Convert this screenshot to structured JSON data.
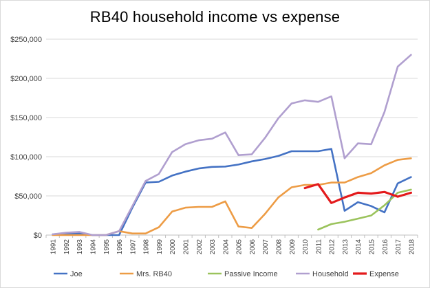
{
  "chart_data": {
    "type": "line",
    "title": "RB40 household income vs expense",
    "xlabel": "",
    "ylabel": "",
    "ylim": [
      0,
      250000
    ],
    "yticks": [
      "$0",
      "$50,000",
      "$100,000",
      "$150,000",
      "$200,000",
      "$250,000"
    ],
    "ytick_values": [
      0,
      50000,
      100000,
      150000,
      200000,
      250000
    ],
    "x": [
      1991,
      1992,
      1993,
      1994,
      1995,
      1996,
      1997,
      1998,
      1999,
      2000,
      2001,
      2002,
      2003,
      2004,
      2005,
      2006,
      2007,
      2008,
      2009,
      2010,
      2011,
      2012,
      2013,
      2014,
      2015,
      2016,
      2017,
      2018
    ],
    "grid": true,
    "legend_position": "bottom",
    "series": [
      {
        "name": "Joe",
        "color": "#4472c4",
        "values": [
          1000,
          2000,
          2000,
          0,
          0,
          0,
          35000,
          67000,
          68000,
          76000,
          81000,
          85000,
          87000,
          87500,
          90000,
          94000,
          97000,
          101000,
          107000,
          107000,
          107000,
          110000,
          31000,
          42000,
          37000,
          29000,
          66000,
          74000
        ]
      },
      {
        "name": "Mrs. RB40",
        "color": "#ed9c45",
        "values": [
          0,
          0,
          0,
          0,
          0,
          5000,
          2000,
          2000,
          10000,
          30000,
          35000,
          36000,
          36000,
          43000,
          11000,
          9000,
          27000,
          48000,
          61000,
          64000,
          64000,
          67000,
          67000,
          74000,
          79000,
          89000,
          96000,
          98000
        ]
      },
      {
        "name": "Passive Income",
        "color": "#9bc35c",
        "values": [
          null,
          null,
          null,
          null,
          null,
          null,
          null,
          null,
          null,
          null,
          null,
          null,
          null,
          null,
          null,
          null,
          null,
          null,
          null,
          null,
          7000,
          14000,
          17000,
          21000,
          25000,
          38000,
          54000,
          58000
        ]
      },
      {
        "name": "Household",
        "color": "#b09fcf",
        "values": [
          1000,
          3000,
          4000,
          0,
          0,
          5000,
          37000,
          69000,
          78000,
          106000,
          116000,
          121000,
          123000,
          131000,
          102000,
          103000,
          124000,
          149000,
          168000,
          172000,
          170000,
          177000,
          98000,
          117000,
          116000,
          157000,
          215000,
          230000
        ]
      },
      {
        "name": "Expense",
        "color": "#e31a1c",
        "values": [
          null,
          null,
          null,
          null,
          null,
          null,
          null,
          null,
          null,
          null,
          null,
          null,
          null,
          null,
          null,
          null,
          null,
          null,
          null,
          60000,
          65000,
          41000,
          48000,
          54000,
          53000,
          55000,
          49000,
          54000
        ]
      }
    ]
  }
}
